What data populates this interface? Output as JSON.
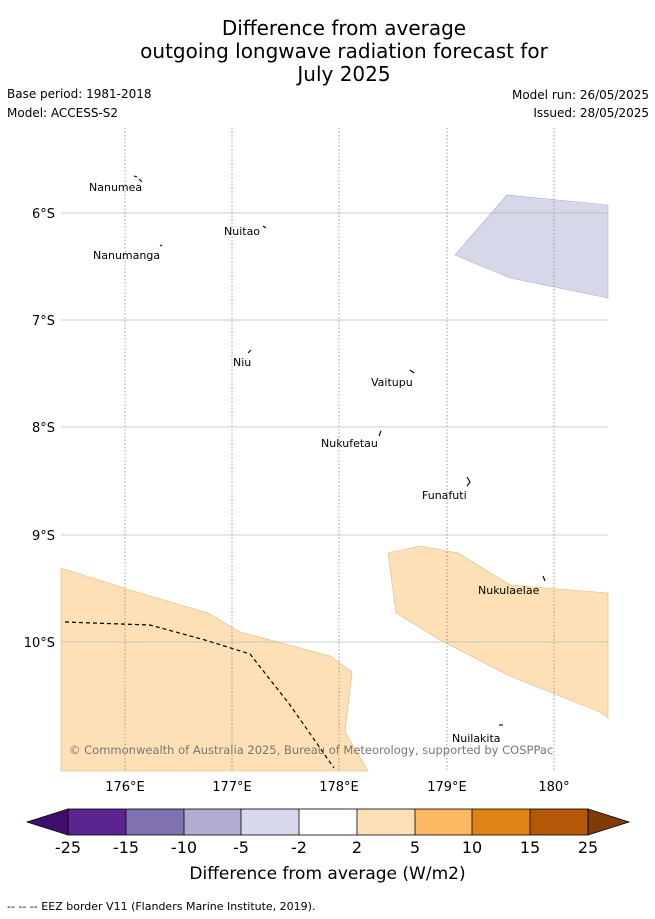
{
  "title": {
    "line1": "Difference from average",
    "line2": "outgoing longwave radiation forecast for",
    "line3": "July 2025"
  },
  "meta": {
    "base_period": "Base period: 1981-2018",
    "model": "Model: ACCESS-S2",
    "model_run": "Model run: 26/05/2025",
    "issued": "Issued: 28/05/2025"
  },
  "map": {
    "lat_labels": [
      "6°S",
      "7°S",
      "8°S",
      "9°S",
      "10°S"
    ],
    "lon_labels": [
      "176°E",
      "177°E",
      "178°E",
      "179°E",
      "180°"
    ],
    "places": [
      "Nanumea",
      "Nuitao",
      "Nanumanga",
      "Niu",
      "Vaitupu",
      "Nukufetau",
      "Funafuti",
      "Nukulaelae",
      "Nuilakita"
    ],
    "credit": "© Commonwealth of Australia 2025, Bureau of Meteorology, supported by COSPPac",
    "colors": {
      "slightly_below": "#d6d7e9",
      "slightly_above": "#fde0b5"
    }
  },
  "colorbar": {
    "tick_labels": [
      "-25",
      "-15",
      "-10",
      "-5",
      "-2",
      "2",
      "5",
      "10",
      "15",
      "25"
    ],
    "colors": [
      "#3f0f6f",
      "#5b2590",
      "#8072ae",
      "#b2abd2",
      "#d8d9ea",
      "#ffffff",
      "#fde0b5",
      "#fdb863",
      "#e08214",
      "#b35806",
      "#7f3b08"
    ],
    "label": "Difference from average (W/m2)"
  },
  "footnote": "--  --  -- EEZ border V11 (Flanders Marine Institute, 2019)."
}
